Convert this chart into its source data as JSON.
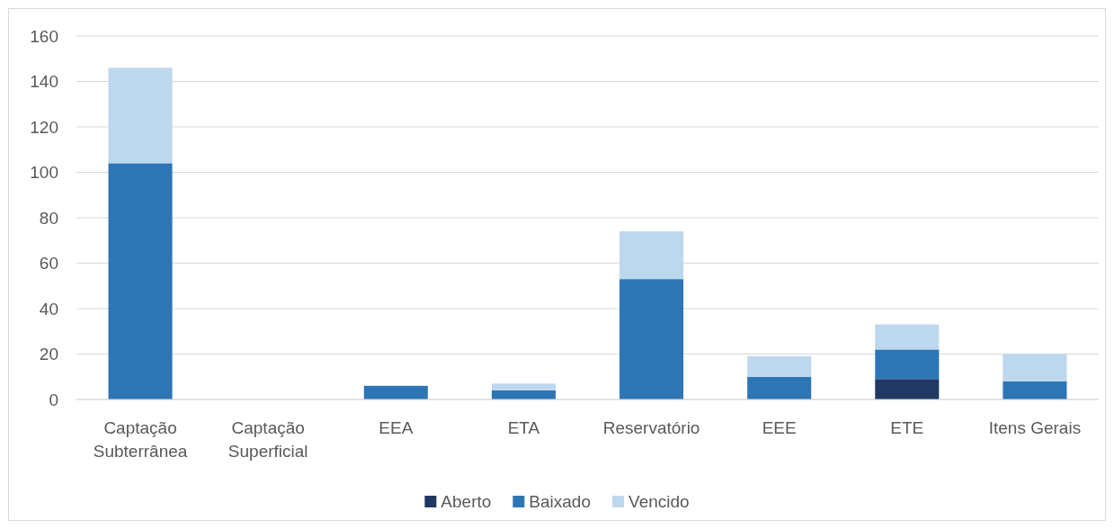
{
  "chart_data": {
    "type": "bar",
    "stacked": true,
    "categories": [
      "Captação Subterrânea",
      "Captação Superficial",
      "EEA",
      "ETA",
      "Reservatório",
      "EEE",
      "ETE",
      "Itens Gerais"
    ],
    "series": [
      {
        "name": "Aberto",
        "color": "#1f3864",
        "values": [
          0,
          0,
          0,
          0,
          0,
          0,
          9,
          0
        ]
      },
      {
        "name": "Baixado",
        "color": "#2e75b6",
        "values": [
          104,
          0,
          6,
          4,
          53,
          10,
          13,
          8
        ]
      },
      {
        "name": "Vencido",
        "color": "#bdd7ee",
        "values": [
          42,
          0,
          0,
          3,
          21,
          9,
          11,
          12
        ]
      }
    ],
    "ylim": [
      0,
      160
    ],
    "yticks": [
      0,
      20,
      40,
      60,
      80,
      100,
      120,
      140,
      160
    ],
    "grid": "y",
    "legend": "bottom"
  }
}
